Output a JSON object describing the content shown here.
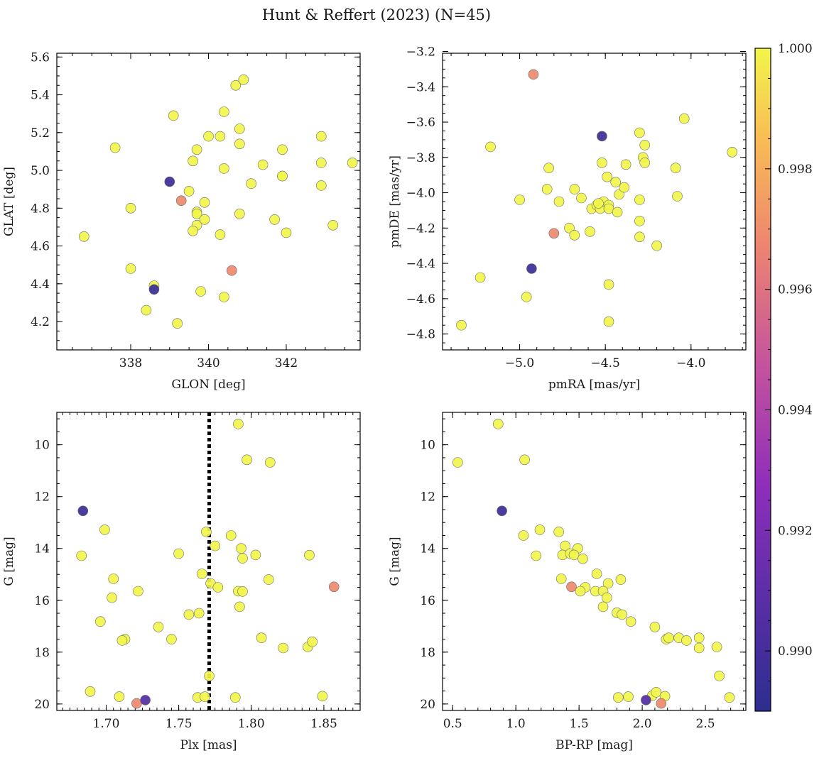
{
  "title": "Hunt & Reffert (2023) (N=45)",
  "colorbar": {
    "min": 0.989,
    "max": 1.0,
    "ticks": [
      0.99,
      0.992,
      0.994,
      0.996,
      0.998,
      1.0
    ],
    "tick_labels": [
      "0.990",
      "0.992",
      "0.994",
      "0.996",
      "0.998",
      "1.000"
    ],
    "colors": [
      "#2c2e8f",
      "#5a2ea6",
      "#8e2ebb",
      "#c4529e",
      "#ec8470",
      "#f9bb55",
      "#f1f54a"
    ]
  },
  "chart_data": [
    {
      "type": "scatter",
      "name": "glon-glat",
      "xlabel": "GLON [deg]",
      "ylabel": "GLAT [deg]",
      "xlim": [
        336.1,
        343.9
      ],
      "ylim": [
        4.05,
        5.62
      ],
      "y_inverted": false,
      "xticks": [
        338,
        340,
        342
      ],
      "xtick_labels": [
        "338",
        "340",
        "342"
      ],
      "yticks": [
        4.2,
        4.4,
        4.6,
        4.8,
        5.0,
        5.2,
        5.4,
        5.6
      ],
      "ytick_labels": [
        "4.2",
        "4.4",
        "4.6",
        "4.8",
        "5.0",
        "5.2",
        "5.4",
        "5.6"
      ],
      "x_minor": 0.5,
      "y_minor": 0.05,
      "points": [
        {
          "x": 336.8,
          "y": 4.65,
          "c": 1.0
        },
        {
          "x": 337.6,
          "y": 5.12,
          "c": 1.0
        },
        {
          "x": 338.0,
          "y": 4.8,
          "c": 1.0
        },
        {
          "x": 338.0,
          "y": 4.48,
          "c": 1.0
        },
        {
          "x": 338.6,
          "y": 4.39,
          "c": 1.0
        },
        {
          "x": 338.4,
          "y": 4.26,
          "c": 1.0
        },
        {
          "x": 339.1,
          "y": 5.29,
          "c": 1.0
        },
        {
          "x": 339.5,
          "y": 4.89,
          "c": 1.0
        },
        {
          "x": 339.6,
          "y": 5.05,
          "c": 1.0
        },
        {
          "x": 339.7,
          "y": 5.11,
          "c": 1.0
        },
        {
          "x": 339.7,
          "y": 4.78,
          "c": 1.0
        },
        {
          "x": 339.7,
          "y": 4.77,
          "c": 1.0
        },
        {
          "x": 339.7,
          "y": 4.71,
          "c": 1.0
        },
        {
          "x": 339.6,
          "y": 4.68,
          "c": 1.0
        },
        {
          "x": 339.9,
          "y": 4.74,
          "c": 1.0
        },
        {
          "x": 339.9,
          "y": 4.83,
          "c": 1.0
        },
        {
          "x": 339.8,
          "y": 4.36,
          "c": 1.0
        },
        {
          "x": 339.2,
          "y": 4.19,
          "c": 1.0
        },
        {
          "x": 340.0,
          "y": 5.18,
          "c": 1.0
        },
        {
          "x": 340.3,
          "y": 5.18,
          "c": 1.0
        },
        {
          "x": 340.4,
          "y": 5.31,
          "c": 1.0
        },
        {
          "x": 340.4,
          "y": 5.01,
          "c": 1.0
        },
        {
          "x": 340.3,
          "y": 4.66,
          "c": 1.0
        },
        {
          "x": 340.4,
          "y": 4.33,
          "c": 1.0
        },
        {
          "x": 340.7,
          "y": 5.45,
          "c": 1.0
        },
        {
          "x": 340.9,
          "y": 5.48,
          "c": 1.0
        },
        {
          "x": 340.8,
          "y": 5.22,
          "c": 1.0
        },
        {
          "x": 340.8,
          "y": 5.14,
          "c": 1.0
        },
        {
          "x": 340.8,
          "y": 4.77,
          "c": 1.0
        },
        {
          "x": 341.1,
          "y": 4.93,
          "c": 1.0
        },
        {
          "x": 341.4,
          "y": 5.03,
          "c": 1.0
        },
        {
          "x": 341.9,
          "y": 5.11,
          "c": 1.0
        },
        {
          "x": 341.9,
          "y": 4.97,
          "c": 1.0
        },
        {
          "x": 341.9,
          "y": 4.97,
          "c": 1.0
        },
        {
          "x": 341.7,
          "y": 4.74,
          "c": 1.0
        },
        {
          "x": 342.0,
          "y": 4.67,
          "c": 1.0
        },
        {
          "x": 342.9,
          "y": 5.18,
          "c": 1.0
        },
        {
          "x": 342.9,
          "y": 5.04,
          "c": 1.0
        },
        {
          "x": 342.9,
          "y": 4.92,
          "c": 1.0
        },
        {
          "x": 343.2,
          "y": 4.71,
          "c": 1.0
        },
        {
          "x": 343.7,
          "y": 5.04,
          "c": 1.0
        },
        {
          "x": 340.6,
          "y": 4.47,
          "c": 0.9965
        },
        {
          "x": 339.3,
          "y": 4.84,
          "c": 0.9965
        },
        {
          "x": 339.0,
          "y": 4.94,
          "c": 0.9895
        },
        {
          "x": 338.6,
          "y": 4.37,
          "c": 0.9895
        }
      ]
    },
    {
      "type": "scatter",
      "name": "pmra-pmde",
      "xlabel": "pmRA [mas/yr]",
      "ylabel": "pmDE [mas/yr]",
      "xlim": [
        -5.45,
        -3.68
      ],
      "ylim": [
        -4.89,
        -3.21
      ],
      "y_inverted": false,
      "xticks": [
        -5.0,
        -4.5,
        -4.0
      ],
      "xtick_labels": [
        "−5.0",
        "−4.5",
        "−4.0"
      ],
      "yticks": [
        -4.8,
        -4.6,
        -4.4,
        -4.2,
        -4.0,
        -3.8,
        -3.6,
        -3.4,
        -3.2
      ],
      "ytick_labels": [
        "−4.8",
        "−4.6",
        "−4.4",
        "−4.2",
        "−4.0",
        "−3.8",
        "−3.6",
        "−3.4",
        "−3.2"
      ],
      "x_minor": 0.1,
      "y_minor": 0.05,
      "points": [
        {
          "x": -5.34,
          "y": -4.75,
          "c": 1.0
        },
        {
          "x": -5.23,
          "y": -4.48,
          "c": 1.0
        },
        {
          "x": -5.17,
          "y": -3.74,
          "c": 1.0
        },
        {
          "x": -5.0,
          "y": -4.04,
          "c": 1.0
        },
        {
          "x": -4.96,
          "y": -4.59,
          "c": 1.0
        },
        {
          "x": -4.83,
          "y": -3.86,
          "c": 1.0
        },
        {
          "x": -4.84,
          "y": -3.98,
          "c": 1.0
        },
        {
          "x": -4.77,
          "y": -4.05,
          "c": 1.0
        },
        {
          "x": -4.71,
          "y": -4.2,
          "c": 1.0
        },
        {
          "x": -4.68,
          "y": -4.24,
          "c": 1.0
        },
        {
          "x": -4.68,
          "y": -3.98,
          "c": 1.0
        },
        {
          "x": -4.64,
          "y": -4.03,
          "c": 1.0
        },
        {
          "x": -4.59,
          "y": -4.22,
          "c": 1.0
        },
        {
          "x": -4.58,
          "y": -4.09,
          "c": 1.0
        },
        {
          "x": -4.55,
          "y": -4.07,
          "c": 1.0
        },
        {
          "x": -4.53,
          "y": -4.09,
          "c": 1.0
        },
        {
          "x": -4.52,
          "y": -3.83,
          "c": 1.0
        },
        {
          "x": -4.51,
          "y": -4.05,
          "c": 1.0
        },
        {
          "x": -4.49,
          "y": -3.91,
          "c": 1.0
        },
        {
          "x": -4.48,
          "y": -4.07,
          "c": 1.0
        },
        {
          "x": -4.48,
          "y": -4.09,
          "c": 1.0
        },
        {
          "x": -4.48,
          "y": -4.52,
          "c": 1.0
        },
        {
          "x": -4.48,
          "y": -4.73,
          "c": 1.0
        },
        {
          "x": -4.44,
          "y": -3.94,
          "c": 1.0
        },
        {
          "x": -4.43,
          "y": -4.11,
          "c": 1.0
        },
        {
          "x": -4.42,
          "y": -4.01,
          "c": 1.0
        },
        {
          "x": -4.39,
          "y": -3.97,
          "c": 1.0
        },
        {
          "x": -4.38,
          "y": -3.84,
          "c": 1.0
        },
        {
          "x": -4.3,
          "y": -3.66,
          "c": 1.0
        },
        {
          "x": -4.3,
          "y": -4.04,
          "c": 1.0
        },
        {
          "x": -4.3,
          "y": -4.16,
          "c": 1.0
        },
        {
          "x": -4.3,
          "y": -4.25,
          "c": 1.0
        },
        {
          "x": -4.28,
          "y": -3.8,
          "c": 1.0
        },
        {
          "x": -4.27,
          "y": -3.73,
          "c": 1.0
        },
        {
          "x": -4.27,
          "y": -3.83,
          "c": 1.0
        },
        {
          "x": -4.2,
          "y": -4.3,
          "c": 1.0
        },
        {
          "x": -4.09,
          "y": -3.86,
          "c": 1.0
        },
        {
          "x": -4.08,
          "y": -4.02,
          "c": 1.0
        },
        {
          "x": -4.04,
          "y": -3.58,
          "c": 1.0
        },
        {
          "x": -3.76,
          "y": -3.77,
          "c": 1.0
        },
        {
          "x": -4.54,
          "y": -4.06,
          "c": 1.0
        },
        {
          "x": -4.92,
          "y": -3.33,
          "c": 0.9965
        },
        {
          "x": -4.8,
          "y": -4.23,
          "c": 0.9965
        },
        {
          "x": -4.52,
          "y": -3.68,
          "c": 0.9895
        },
        {
          "x": -4.93,
          "y": -4.43,
          "c": 0.9895
        }
      ]
    },
    {
      "type": "scatter",
      "name": "plx-g",
      "xlabel": "Plx [mas]",
      "ylabel": "G [mag]",
      "xlim": [
        1.666,
        1.875
      ],
      "ylim": [
        8.75,
        20.25
      ],
      "y_inverted": true,
      "xticks": [
        1.7,
        1.75,
        1.8,
        1.85
      ],
      "xtick_labels": [
        "1.70",
        "1.75",
        "1.80",
        "1.85"
      ],
      "yticks": [
        10,
        12,
        14,
        16,
        18,
        20
      ],
      "ytick_labels": [
        "10",
        "12",
        "14",
        "16",
        "18",
        "20"
      ],
      "x_minor": 0.005,
      "y_minor": 0.5,
      "vline": 1.771,
      "points": [
        {
          "x": 1.791,
          "y": 9.2,
          "c": 1.0
        },
        {
          "x": 1.797,
          "y": 10.58,
          "c": 1.0
        },
        {
          "x": 1.813,
          "y": 10.68,
          "c": 1.0
        },
        {
          "x": 1.699,
          "y": 13.28,
          "c": 1.0
        },
        {
          "x": 1.683,
          "y": 14.28,
          "c": 1.0
        },
        {
          "x": 1.769,
          "y": 13.36,
          "c": 1.0
        },
        {
          "x": 1.786,
          "y": 13.5,
          "c": 1.0
        },
        {
          "x": 1.775,
          "y": 13.9,
          "c": 1.0
        },
        {
          "x": 1.793,
          "y": 14.0,
          "c": 1.0
        },
        {
          "x": 1.75,
          "y": 14.2,
          "c": 1.0
        },
        {
          "x": 1.803,
          "y": 14.25,
          "c": 1.0
        },
        {
          "x": 1.794,
          "y": 14.38,
          "c": 1.0
        },
        {
          "x": 1.84,
          "y": 14.26,
          "c": 1.0
        },
        {
          "x": 1.766,
          "y": 14.98,
          "c": 1.0
        },
        {
          "x": 1.705,
          "y": 15.17,
          "c": 1.0
        },
        {
          "x": 1.812,
          "y": 15.2,
          "c": 1.0
        },
        {
          "x": 1.772,
          "y": 15.35,
          "c": 1.0
        },
        {
          "x": 1.777,
          "y": 15.5,
          "c": 1.0
        },
        {
          "x": 1.722,
          "y": 15.65,
          "c": 1.0
        },
        {
          "x": 1.791,
          "y": 15.65,
          "c": 1.0
        },
        {
          "x": 1.794,
          "y": 15.66,
          "c": 1.0
        },
        {
          "x": 1.704,
          "y": 15.9,
          "c": 1.0
        },
        {
          "x": 1.792,
          "y": 16.25,
          "c": 1.0
        },
        {
          "x": 1.764,
          "y": 16.5,
          "c": 1.0
        },
        {
          "x": 1.757,
          "y": 16.55,
          "c": 1.0
        },
        {
          "x": 1.696,
          "y": 16.82,
          "c": 1.0
        },
        {
          "x": 1.736,
          "y": 17.03,
          "c": 1.0
        },
        {
          "x": 1.713,
          "y": 17.5,
          "c": 1.0
        },
        {
          "x": 1.711,
          "y": 17.55,
          "c": 1.0
        },
        {
          "x": 1.745,
          "y": 17.5,
          "c": 1.0
        },
        {
          "x": 1.807,
          "y": 17.45,
          "c": 1.0
        },
        {
          "x": 1.822,
          "y": 17.84,
          "c": 1.0
        },
        {
          "x": 1.839,
          "y": 17.8,
          "c": 1.0
        },
        {
          "x": 1.842,
          "y": 17.6,
          "c": 1.0
        },
        {
          "x": 1.771,
          "y": 18.92,
          "c": 1.0
        },
        {
          "x": 1.689,
          "y": 19.52,
          "c": 1.0
        },
        {
          "x": 1.709,
          "y": 19.72,
          "c": 1.0
        },
        {
          "x": 1.763,
          "y": 19.75,
          "c": 1.0
        },
        {
          "x": 1.768,
          "y": 19.72,
          "c": 1.0
        },
        {
          "x": 1.789,
          "y": 19.75,
          "c": 1.0
        },
        {
          "x": 1.849,
          "y": 19.7,
          "c": 1.0
        },
        {
          "x": 1.857,
          "y": 15.48,
          "c": 0.9965
        },
        {
          "x": 1.721,
          "y": 19.98,
          "c": 0.9965
        },
        {
          "x": 1.684,
          "y": 12.55,
          "c": 0.9895
        },
        {
          "x": 1.727,
          "y": 19.85,
          "c": 0.9905
        }
      ]
    },
    {
      "type": "scatter",
      "name": "bprp-g",
      "xlabel": "BP-RP [mag]",
      "ylabel": "G [mag]",
      "xlim": [
        0.42,
        2.82
      ],
      "ylim": [
        8.75,
        20.25
      ],
      "y_inverted": true,
      "xticks": [
        0.5,
        1.0,
        1.5,
        2.0,
        2.5
      ],
      "xtick_labels": [
        "0.5",
        "1.0",
        "1.5",
        "2.0",
        "2.5"
      ],
      "yticks": [
        10,
        12,
        14,
        16,
        18,
        20
      ],
      "ytick_labels": [
        "10",
        "12",
        "14",
        "16",
        "18",
        "20"
      ],
      "x_minor": 0.1,
      "y_minor": 0.5,
      "points": [
        {
          "x": 0.86,
          "y": 9.2,
          "c": 1.0
        },
        {
          "x": 0.54,
          "y": 10.68,
          "c": 1.0
        },
        {
          "x": 1.07,
          "y": 10.58,
          "c": 1.0
        },
        {
          "x": 1.06,
          "y": 13.5,
          "c": 1.0
        },
        {
          "x": 1.19,
          "y": 13.28,
          "c": 1.0
        },
        {
          "x": 1.34,
          "y": 13.36,
          "c": 1.0
        },
        {
          "x": 1.39,
          "y": 13.9,
          "c": 1.0
        },
        {
          "x": 1.49,
          "y": 14.0,
          "c": 1.0
        },
        {
          "x": 1.16,
          "y": 14.28,
          "c": 1.0
        },
        {
          "x": 1.37,
          "y": 14.25,
          "c": 1.0
        },
        {
          "x": 1.43,
          "y": 14.2,
          "c": 1.0
        },
        {
          "x": 1.46,
          "y": 14.25,
          "c": 1.0
        },
        {
          "x": 1.53,
          "y": 14.4,
          "c": 1.0
        },
        {
          "x": 1.64,
          "y": 14.98,
          "c": 1.0
        },
        {
          "x": 1.36,
          "y": 15.17,
          "c": 1.0
        },
        {
          "x": 1.83,
          "y": 15.2,
          "c": 1.0
        },
        {
          "x": 1.73,
          "y": 15.35,
          "c": 1.0
        },
        {
          "x": 1.55,
          "y": 15.5,
          "c": 1.0
        },
        {
          "x": 1.51,
          "y": 15.65,
          "c": 1.0
        },
        {
          "x": 1.63,
          "y": 15.65,
          "c": 1.0
        },
        {
          "x": 1.69,
          "y": 15.65,
          "c": 1.0
        },
        {
          "x": 1.72,
          "y": 15.9,
          "c": 1.0
        },
        {
          "x": 1.69,
          "y": 16.25,
          "c": 1.0
        },
        {
          "x": 1.8,
          "y": 16.48,
          "c": 1.0
        },
        {
          "x": 1.84,
          "y": 16.55,
          "c": 1.0
        },
        {
          "x": 1.91,
          "y": 16.82,
          "c": 1.0
        },
        {
          "x": 2.1,
          "y": 17.03,
          "c": 1.0
        },
        {
          "x": 2.19,
          "y": 17.5,
          "c": 1.0
        },
        {
          "x": 2.21,
          "y": 17.45,
          "c": 1.0
        },
        {
          "x": 2.29,
          "y": 17.45,
          "c": 1.0
        },
        {
          "x": 2.35,
          "y": 17.55,
          "c": 1.0
        },
        {
          "x": 2.45,
          "y": 17.45,
          "c": 1.0
        },
        {
          "x": 2.45,
          "y": 17.84,
          "c": 1.0
        },
        {
          "x": 2.59,
          "y": 17.8,
          "c": 1.0
        },
        {
          "x": 2.61,
          "y": 18.92,
          "c": 1.0
        },
        {
          "x": 2.69,
          "y": 19.75,
          "c": 1.0
        },
        {
          "x": 1.81,
          "y": 19.75,
          "c": 1.0
        },
        {
          "x": 1.89,
          "y": 19.72,
          "c": 1.0
        },
        {
          "x": 2.08,
          "y": 19.68,
          "c": 1.0
        },
        {
          "x": 2.11,
          "y": 19.55,
          "c": 1.0
        },
        {
          "x": 2.18,
          "y": 19.7,
          "c": 1.0
        },
        {
          "x": 1.44,
          "y": 15.48,
          "c": 0.9965
        },
        {
          "x": 2.15,
          "y": 19.98,
          "c": 0.9965
        },
        {
          "x": 0.89,
          "y": 12.55,
          "c": 0.9895
        },
        {
          "x": 2.03,
          "y": 19.85,
          "c": 0.9905
        }
      ]
    }
  ]
}
